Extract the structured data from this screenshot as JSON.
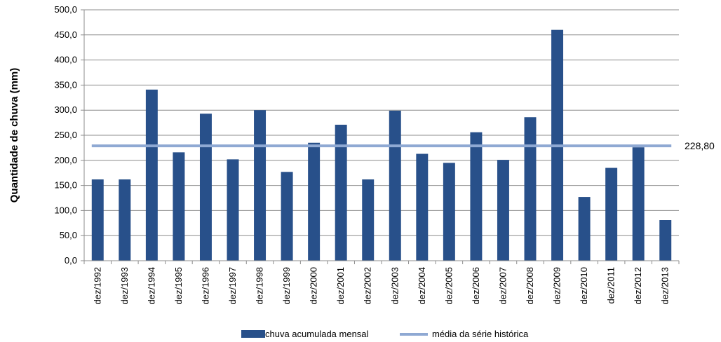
{
  "chart_data": {
    "type": "bar",
    "categories": [
      "dez/1992",
      "dez/1993",
      "dez/1994",
      "dez/1995",
      "dez/1996",
      "dez/1997",
      "dez/1998",
      "dez/1999",
      "dez/2000",
      "dez/2001",
      "dez/2002",
      "dez/2003",
      "dez/2004",
      "dez/2005",
      "dez/2006",
      "dez/2007",
      "dez/2008",
      "dez/2009",
      "dez/2010",
      "dez/2011",
      "dez/2012",
      "dez/2013"
    ],
    "series": [
      {
        "name": "chuva acumulada mensal",
        "type": "bar",
        "color": "#28508a",
        "values": [
          162,
          162,
          341,
          216,
          293,
          202,
          300,
          177,
          235,
          271,
          162,
          299,
          213,
          195,
          256,
          201,
          286,
          460,
          127,
          185,
          226,
          81
        ]
      },
      {
        "name": "média da série histórica",
        "type": "line",
        "color": "#8fa9d3",
        "value": 228.8,
        "label": "228,80"
      }
    ],
    "ylabel": "Quantidade de chuva (mm)",
    "xlabel": "",
    "ylim": [
      0,
      500
    ],
    "yticks": [
      "0,0",
      "50,0",
      "100,0",
      "150,0",
      "200,0",
      "250,0",
      "300,0",
      "350,0",
      "400,0",
      "450,0",
      "500,0"
    ],
    "ytick_values": [
      0,
      50,
      100,
      150,
      200,
      250,
      300,
      350,
      400,
      450,
      500
    ],
    "grid": true,
    "legend_position": "bottom"
  }
}
